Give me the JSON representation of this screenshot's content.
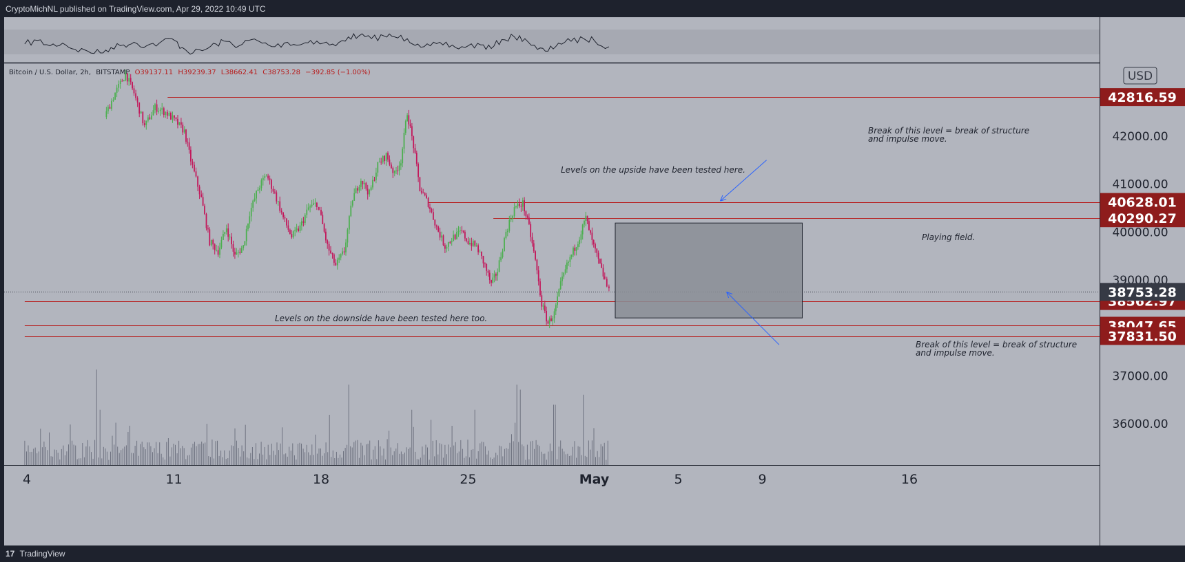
{
  "header": {
    "publisher_text": "CryptoMichNL published on TradingView.com, Apr 29, 2022 10:49 UTC"
  },
  "footer": {
    "logo_glyph": "17",
    "brand": "TradingView"
  },
  "symbol_info": {
    "pair": "Bitcoin / U.S. Dollar, 2h,",
    "exchange": "BITSTAMP",
    "open": "O39137.11",
    "high": "H39239.37",
    "low": "L38662.41",
    "close": "C38753.28",
    "change": "−392.85 (−1.00%)"
  },
  "currency_label": "USD",
  "chart_data": {
    "type": "candlestick",
    "ylim": [
      34000,
      43200
    ],
    "y_ticks": [
      "42000.00",
      "41000.00",
      "40000.00",
      "39000.00",
      "37000.00",
      "36000.00"
    ],
    "x_ticks": [
      {
        "label": "4",
        "day": 4,
        "bold": false
      },
      {
        "label": "11",
        "day": 11,
        "bold": false
      },
      {
        "label": "18",
        "day": 18,
        "bold": false
      },
      {
        "label": "25",
        "day": 25,
        "bold": false
      },
      {
        "label": "May",
        "day": 31,
        "bold": true
      },
      {
        "label": "5",
        "day": 35,
        "bold": false
      },
      {
        "label": "9",
        "day": 39,
        "bold": false
      },
      {
        "label": "16",
        "day": 46,
        "bold": false
      }
    ],
    "horizontal_levels": [
      {
        "label": "42816.59",
        "value": 42816.59,
        "start_day": 10.7
      },
      {
        "label": "40628.01",
        "value": 40628.01,
        "start_day": 23.1
      },
      {
        "label": "40290.27",
        "value": 40290.27,
        "start_day": 26.2
      },
      {
        "label": "38562.97",
        "value": 38562.97,
        "start_day": 3.9
      },
      {
        "label": "38047.65",
        "value": 38047.65,
        "start_day": 3.9
      },
      {
        "label": "37831.50",
        "value": 37831.5,
        "start_day": 3.9
      }
    ],
    "current_price": {
      "label": "38753.28",
      "value": 38753.28
    },
    "price_path": [
      [
        7.7,
        42400
      ],
      [
        8.2,
        42900
      ],
      [
        8.7,
        43300
      ],
      [
        9.1,
        42900
      ],
      [
        9.6,
        42200
      ],
      [
        10.1,
        42600
      ],
      [
        10.6,
        42500
      ],
      [
        11.1,
        42300
      ],
      [
        11.5,
        42100
      ],
      [
        11.8,
        41500
      ],
      [
        12.3,
        40700
      ],
      [
        12.7,
        39800
      ],
      [
        13.1,
        39600
      ],
      [
        13.5,
        40100
      ],
      [
        13.9,
        39500
      ],
      [
        14.3,
        39700
      ],
      [
        14.6,
        40400
      ],
      [
        15.0,
        40900
      ],
      [
        15.4,
        41200
      ],
      [
        15.8,
        40800
      ],
      [
        16.2,
        40300
      ],
      [
        16.6,
        39900
      ],
      [
        17.0,
        40100
      ],
      [
        17.4,
        40500
      ],
      [
        17.8,
        40600
      ],
      [
        18.0,
        40300
      ],
      [
        18.3,
        39700
      ],
      [
        18.7,
        39300
      ],
      [
        19.1,
        39600
      ],
      [
        19.5,
        40700
      ],
      [
        19.9,
        41100
      ],
      [
        20.3,
        40800
      ],
      [
        20.7,
        41400
      ],
      [
        21.1,
        41600
      ],
      [
        21.5,
        41200
      ],
      [
        21.8,
        41500
      ],
      [
        22.1,
        42500
      ],
      [
        22.4,
        41800
      ],
      [
        22.7,
        40900
      ],
      [
        23.1,
        40600
      ],
      [
        23.5,
        40100
      ],
      [
        23.9,
        39700
      ],
      [
        24.3,
        39900
      ],
      [
        24.7,
        40000
      ],
      [
        25.0,
        39800
      ],
      [
        25.4,
        39700
      ],
      [
        25.8,
        39300
      ],
      [
        26.1,
        38900
      ],
      [
        26.4,
        39200
      ],
      [
        26.8,
        40000
      ],
      [
        27.2,
        40500
      ],
      [
        27.6,
        40600
      ],
      [
        27.9,
        40100
      ],
      [
        28.2,
        39400
      ],
      [
        28.5,
        38500
      ],
      [
        28.8,
        38100
      ],
      [
        29.1,
        38300
      ],
      [
        29.4,
        38900
      ],
      [
        29.7,
        39300
      ],
      [
        30.0,
        39600
      ],
      [
        30.3,
        39900
      ],
      [
        30.6,
        40300
      ],
      [
        30.9,
        39800
      ],
      [
        31.2,
        39400
      ],
      [
        31.5,
        39000
      ],
      [
        31.7,
        38753
      ]
    ],
    "volume_series": {
      "start_day": 3.9,
      "end_day": 31.7,
      "spikes": [
        [
          7.3,
          0.95
        ],
        [
          7.5,
          0.55
        ],
        [
          14.4,
          0.4
        ],
        [
          18.4,
          0.5
        ],
        [
          19.3,
          0.8
        ],
        [
          22.3,
          0.55
        ],
        [
          23.2,
          0.45
        ],
        [
          25.3,
          0.55
        ],
        [
          27.3,
          0.8
        ],
        [
          27.5,
          0.75
        ],
        [
          29.1,
          0.6
        ],
        [
          30.5,
          0.7
        ]
      ]
    },
    "rsi_path": [
      [
        3.9,
        0.5
      ],
      [
        4.5,
        0.3
      ],
      [
        5.1,
        0.6
      ],
      [
        5.7,
        0.45
      ],
      [
        6.3,
        0.8
      ],
      [
        6.9,
        0.9
      ],
      [
        7.5,
        1.0
      ],
      [
        8.0,
        0.7
      ],
      [
        8.6,
        0.55
      ],
      [
        9.1,
        0.4
      ],
      [
        9.7,
        0.6
      ],
      [
        10.3,
        0.45
      ],
      [
        10.9,
        0.2
      ],
      [
        11.4,
        0.7
      ],
      [
        11.9,
        1.0
      ],
      [
        12.5,
        0.8
      ],
      [
        13.0,
        0.5
      ],
      [
        13.5,
        0.35
      ],
      [
        14.1,
        0.6
      ],
      [
        14.7,
        0.25
      ],
      [
        15.2,
        0.45
      ],
      [
        15.8,
        0.65
      ],
      [
        16.4,
        0.4
      ],
      [
        17.0,
        0.55
      ],
      [
        17.5,
        0.3
      ],
      [
        18.1,
        0.45
      ],
      [
        18.7,
        0.6
      ],
      [
        19.3,
        0.1
      ],
      [
        19.8,
        0.05
      ],
      [
        20.4,
        0.2
      ],
      [
        21.0,
        0.05
      ],
      [
        21.5,
        0.1
      ],
      [
        22.1,
        0.2
      ],
      [
        22.6,
        0.5
      ],
      [
        23.2,
        0.6
      ],
      [
        23.8,
        0.55
      ],
      [
        24.4,
        0.7
      ],
      [
        25.0,
        0.6
      ],
      [
        25.6,
        0.55
      ],
      [
        26.1,
        0.75
      ],
      [
        26.6,
        0.25
      ],
      [
        27.2,
        0.1
      ],
      [
        27.7,
        0.2
      ],
      [
        28.3,
        0.8
      ],
      [
        28.8,
        0.9
      ],
      [
        29.3,
        0.45
      ],
      [
        29.9,
        0.35
      ],
      [
        30.5,
        0.2
      ],
      [
        31.0,
        0.3
      ],
      [
        31.7,
        0.65
      ]
    ],
    "playing_field": {
      "day_start": 32.0,
      "day_end": 40.9,
      "top": 40190,
      "bottom": 38210
    },
    "annotations": [
      {
        "lines": [
          "Break of this level = break of structure",
          "and impulse move."
        ]
      },
      {
        "lines": [
          "Levels on the upside have been tested here."
        ]
      },
      {
        "lines": [
          "Playing field."
        ]
      },
      {
        "lines": [
          "Levels on the downside have been tested here too."
        ]
      },
      {
        "lines": [
          "Break of this level = break of structure",
          "and impulse move."
        ]
      }
    ],
    "arrows": [
      {
        "from": [
          39.2,
          41500
        ],
        "to": [
          37.0,
          40650
        ]
      },
      {
        "from": [
          39.8,
          37650
        ],
        "to": [
          37.3,
          38750
        ]
      }
    ]
  },
  "colors": {
    "background": "#b2b5be",
    "frame": "#1e222d",
    "up_candle": "#4caf50",
    "down_candle": "#c2185b",
    "level_line": "#b71c1c",
    "level_label_bg": "#8e1c1c",
    "current_label_bg": "#363a45",
    "box_fill": "#8a8e97",
    "arrow": "#2962ff"
  }
}
